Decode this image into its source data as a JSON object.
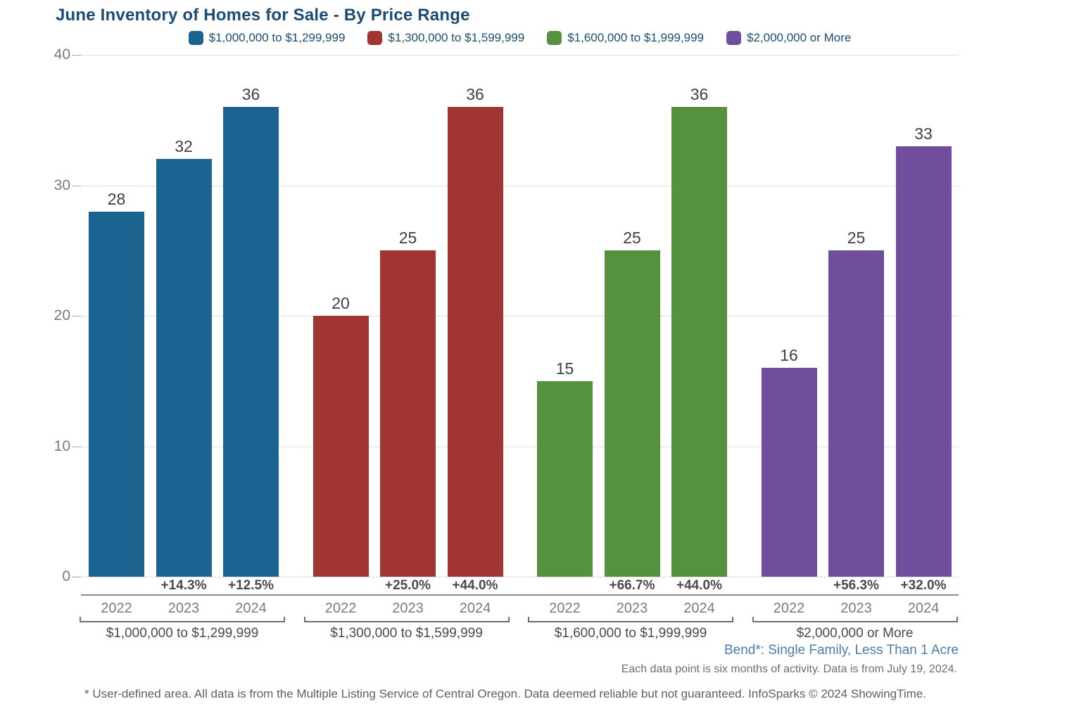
{
  "title": "June Inventory of Homes for Sale - By Price Range",
  "notes": {
    "location": "Bend*: Single Family, Less Than 1 Acre",
    "data_note": "Each data point is six months of activity. Data is from July 19, 2024.",
    "footer": "* User-defined area. All data is from the Multiple Listing Service of Central Oregon. Data deemed reliable but not guaranteed. InfoSparks © 2024 ShowingTime."
  },
  "colors": {
    "title_text": "#1C4B73",
    "location_note_text": "#4E7CA8",
    "series_blue": "#1B6391",
    "series_red": "#A13531",
    "series_green": "#569140",
    "series_purple": "#6F4E9E",
    "gridline": "#dddddd",
    "axis_line": "#8a8a8a"
  },
  "chart_data": {
    "type": "bar",
    "title": "June Inventory of Homes for Sale - By Price Range",
    "xlabel": "",
    "ylabel": "",
    "ylim": [
      0,
      40
    ],
    "yticks": [
      0,
      10,
      20,
      30,
      40
    ],
    "grid": true,
    "legend_position": "top",
    "categories": [
      "2022",
      "2023",
      "2024"
    ],
    "series": [
      {
        "name": "$1,000,000 to $1,299,999",
        "color": "#1B6391",
        "values": [
          28,
          32,
          36
        ],
        "pct_change": [
          "",
          "+14.3%",
          "+12.5%"
        ]
      },
      {
        "name": "$1,300,000 to $1,599,999",
        "color": "#A13531",
        "values": [
          20,
          25,
          36
        ],
        "pct_change": [
          "",
          "+25.0%",
          "+44.0%"
        ]
      },
      {
        "name": "$1,600,000 to $1,999,999",
        "color": "#569140",
        "values": [
          15,
          25,
          36
        ],
        "pct_change": [
          "",
          "+66.7%",
          "+44.0%"
        ]
      },
      {
        "name": "$2,000,000 or More",
        "color": "#6F4E9E",
        "values": [
          16,
          25,
          33
        ],
        "pct_change": [
          "",
          "+56.3%",
          "+32.0%"
        ]
      }
    ]
  }
}
